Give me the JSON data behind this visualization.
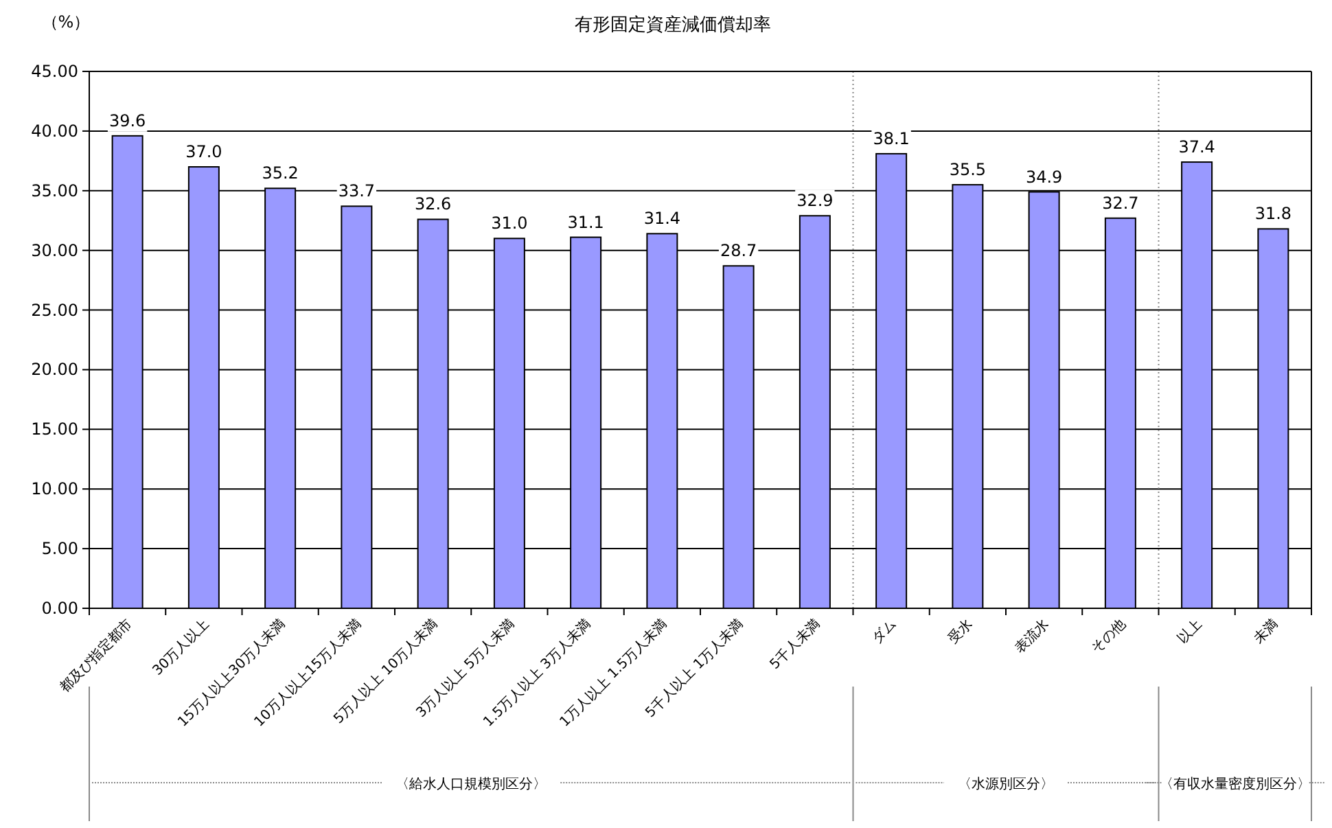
{
  "chart_data": {
    "type": "bar",
    "title": "有形固定資産減価償却率",
    "ylabel": "（%）",
    "categories": [
      "都及び指定都市",
      "30万人以上",
      "15万人以上30万人未満",
      "10万人以上15万人未満",
      "5万人以上 10万人未満",
      "3万人以上 5万人未満",
      "1.5万人以上 3万人未満",
      "1万人以上 1.5万人未満",
      "5千人以上 1万人未満",
      "5千人未満",
      "ダム",
      "受水",
      "表流水",
      "その他",
      "以上",
      "未満"
    ],
    "values": [
      39.6,
      37.0,
      35.2,
      33.7,
      32.6,
      31.0,
      31.1,
      31.4,
      28.7,
      32.9,
      38.1,
      35.5,
      34.9,
      32.7,
      37.4,
      31.8
    ],
    "value_labels": [
      "39.6",
      "37.0",
      "35.2",
      "33.7",
      "32.6",
      "31.0",
      "31.1",
      "31.4",
      "28.7",
      "32.9",
      "38.1",
      "35.5",
      "34.9",
      "32.7",
      "37.4",
      "31.8"
    ],
    "color": "#9999ff",
    "ylim": [
      0,
      45
    ],
    "yticks": [
      {
        "value": 0,
        "label": "0.00"
      },
      {
        "value": 5,
        "label": "5.00"
      },
      {
        "value": 10,
        "label": "10.00"
      },
      {
        "value": 15,
        "label": "15.00"
      },
      {
        "value": 20,
        "label": "20.00"
      },
      {
        "value": 25,
        "label": "25.00"
      },
      {
        "value": 30,
        "label": "30.00"
      },
      {
        "value": 35,
        "label": "35.00"
      },
      {
        "value": 40,
        "label": "40.00"
      },
      {
        "value": 45,
        "label": "45.00"
      }
    ],
    "grid": "y",
    "annotations": [
      "〈給水人口規模別区分〉",
      "〈水源別区分〉",
      "〈有収水量密度別区分〉"
    ]
  }
}
